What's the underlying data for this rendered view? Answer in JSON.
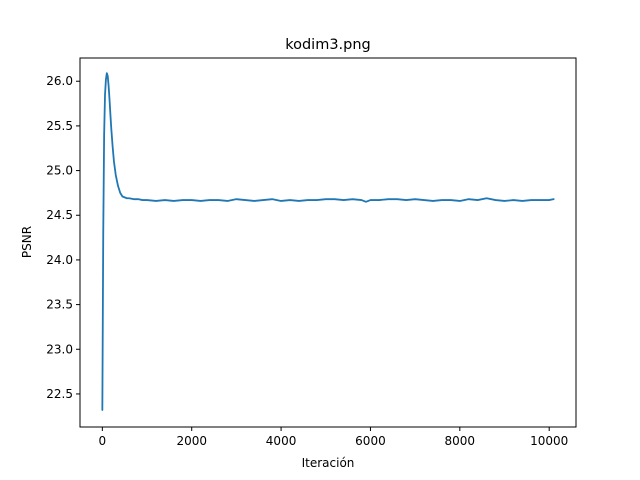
{
  "chart_data": {
    "type": "line",
    "title": "kodim3.png",
    "xlabel": "Iteración",
    "ylabel": "PSNR",
    "xlim": [
      -500,
      10600
    ],
    "ylim": [
      22.13,
      26.26
    ],
    "x_ticks": [
      0,
      2000,
      4000,
      6000,
      8000,
      10000
    ],
    "x_tick_labels": [
      "0",
      "2000",
      "4000",
      "6000",
      "8000",
      "10000"
    ],
    "y_ticks": [
      22.5,
      23.0,
      23.5,
      24.0,
      24.5,
      25.0,
      25.5,
      26.0
    ],
    "y_tick_labels": [
      "22.5",
      "23.0",
      "23.5",
      "24.0",
      "24.5",
      "25.0",
      "25.5",
      "26.0"
    ],
    "grid": false,
    "series": [
      {
        "color": "#1f77b4",
        "x": [
          0,
          20,
          40,
          60,
          80,
          100,
          120,
          140,
          160,
          180,
          200,
          230,
          260,
          300,
          350,
          400,
          450,
          500,
          550,
          600,
          700,
          800,
          900,
          1000,
          1200,
          1400,
          1600,
          1800,
          2000,
          2200,
          2400,
          2600,
          2800,
          3000,
          3200,
          3400,
          3600,
          3800,
          4000,
          4200,
          4400,
          4600,
          4800,
          5000,
          5200,
          5400,
          5600,
          5800,
          5900,
          6000,
          6200,
          6400,
          6600,
          6800,
          7000,
          7200,
          7400,
          7600,
          7800,
          8000,
          8200,
          8400,
          8600,
          8800,
          9000,
          9200,
          9400,
          9600,
          9800,
          10000,
          10100
        ],
        "y": [
          22.32,
          24.3,
          25.4,
          25.85,
          26.02,
          26.09,
          26.06,
          25.95,
          25.8,
          25.63,
          25.47,
          25.27,
          25.1,
          24.95,
          24.83,
          24.75,
          24.71,
          24.7,
          24.69,
          24.69,
          24.68,
          24.68,
          24.67,
          24.67,
          24.66,
          24.67,
          24.66,
          24.67,
          24.67,
          24.66,
          24.67,
          24.67,
          24.66,
          24.68,
          24.67,
          24.66,
          24.67,
          24.68,
          24.66,
          24.67,
          24.66,
          24.67,
          24.67,
          24.68,
          24.68,
          24.67,
          24.68,
          24.67,
          24.65,
          24.67,
          24.67,
          24.68,
          24.68,
          24.67,
          24.68,
          24.67,
          24.66,
          24.67,
          24.67,
          24.66,
          24.68,
          24.67,
          24.69,
          24.67,
          24.66,
          24.67,
          24.66,
          24.67,
          24.67,
          24.67,
          24.68
        ]
      }
    ]
  }
}
